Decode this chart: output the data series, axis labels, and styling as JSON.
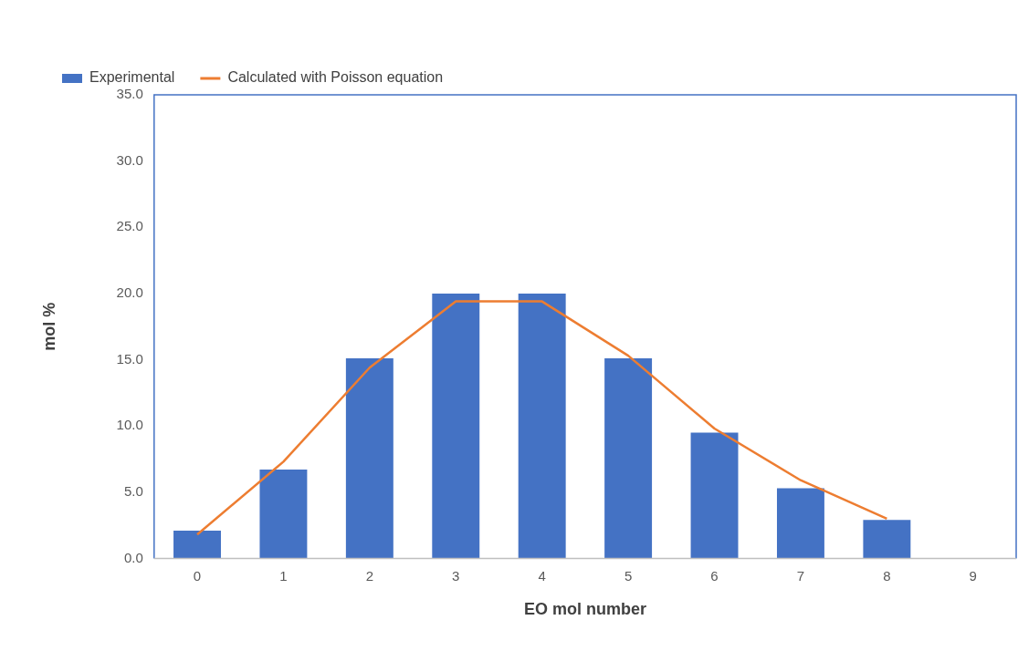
{
  "chart_data": {
    "type": "bar",
    "xlabel": "EO mol number",
    "ylabel": "mol %",
    "categories": [
      "0",
      "1",
      "2",
      "3",
      "4",
      "5",
      "6",
      "7",
      "8",
      "9"
    ],
    "series": [
      {
        "name": "Experimental",
        "color": "#4472c4",
        "values": [
          2.1,
          6.7,
          15.1,
          20.0,
          20.0,
          15.1,
          9.5,
          5.3,
          2.9,
          null
        ]
      },
      {
        "name": "Calculated with Poisson equation",
        "type": "line",
        "color": "#ed7d31",
        "values": [
          1.8,
          7.3,
          14.4,
          19.4,
          19.4,
          15.3,
          9.8,
          5.9,
          3.0,
          null
        ]
      }
    ],
    "ylim": [
      0,
      35
    ],
    "yticks": [
      {
        "value": 0,
        "label": "0.0"
      },
      {
        "value": 5,
        "label": "5.0"
      },
      {
        "value": 10,
        "label": "10.0"
      },
      {
        "value": 15,
        "label": "15.0"
      },
      {
        "value": 20,
        "label": "20.0"
      },
      {
        "value": 25,
        "label": "25.0"
      },
      {
        "value": 30,
        "label": "30.0"
      },
      {
        "value": 35,
        "label": "35.0"
      }
    ],
    "grid": false,
    "legend": "top left",
    "marker": "none",
    "line_style": "solid"
  }
}
